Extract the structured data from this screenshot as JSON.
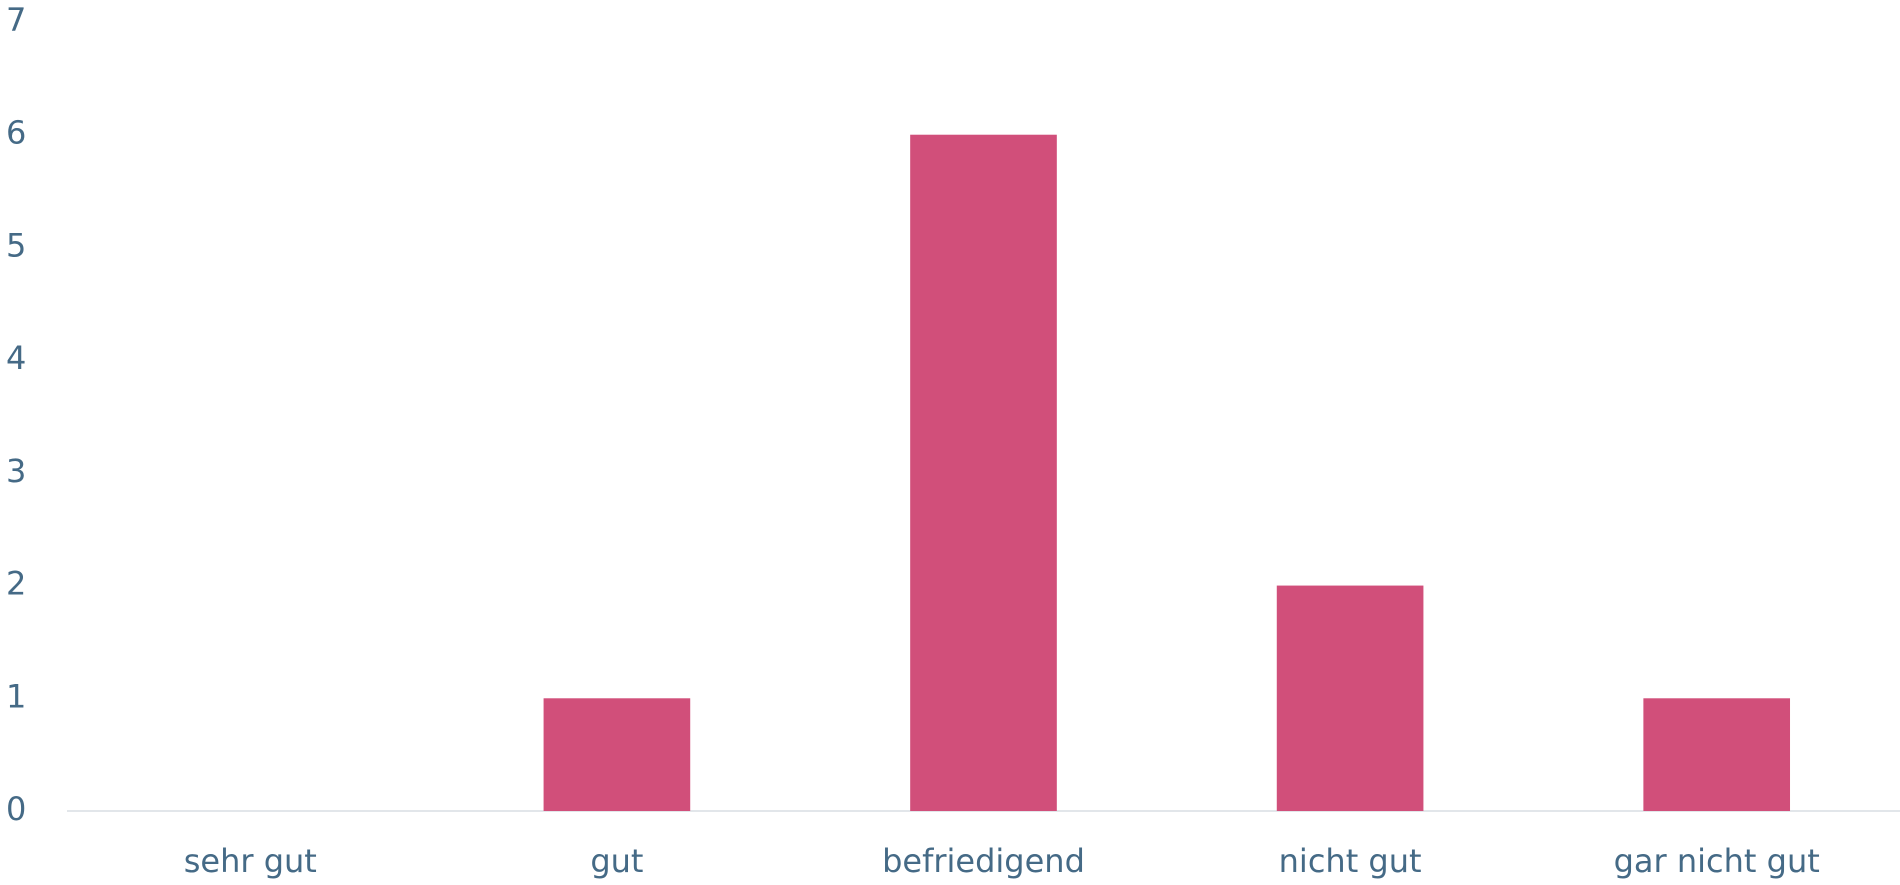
{
  "chart_data": {
    "type": "bar",
    "categories": [
      "sehr gut",
      "gut",
      "befriedigend",
      "nicht gut",
      "gar nicht gut"
    ],
    "values": [
      0,
      1,
      6,
      2,
      1
    ],
    "color": "#d14f7a",
    "ylim": [
      0,
      7
    ],
    "yticks": [
      0,
      1,
      2,
      3,
      4,
      5,
      6,
      7
    ],
    "grid": false
  }
}
